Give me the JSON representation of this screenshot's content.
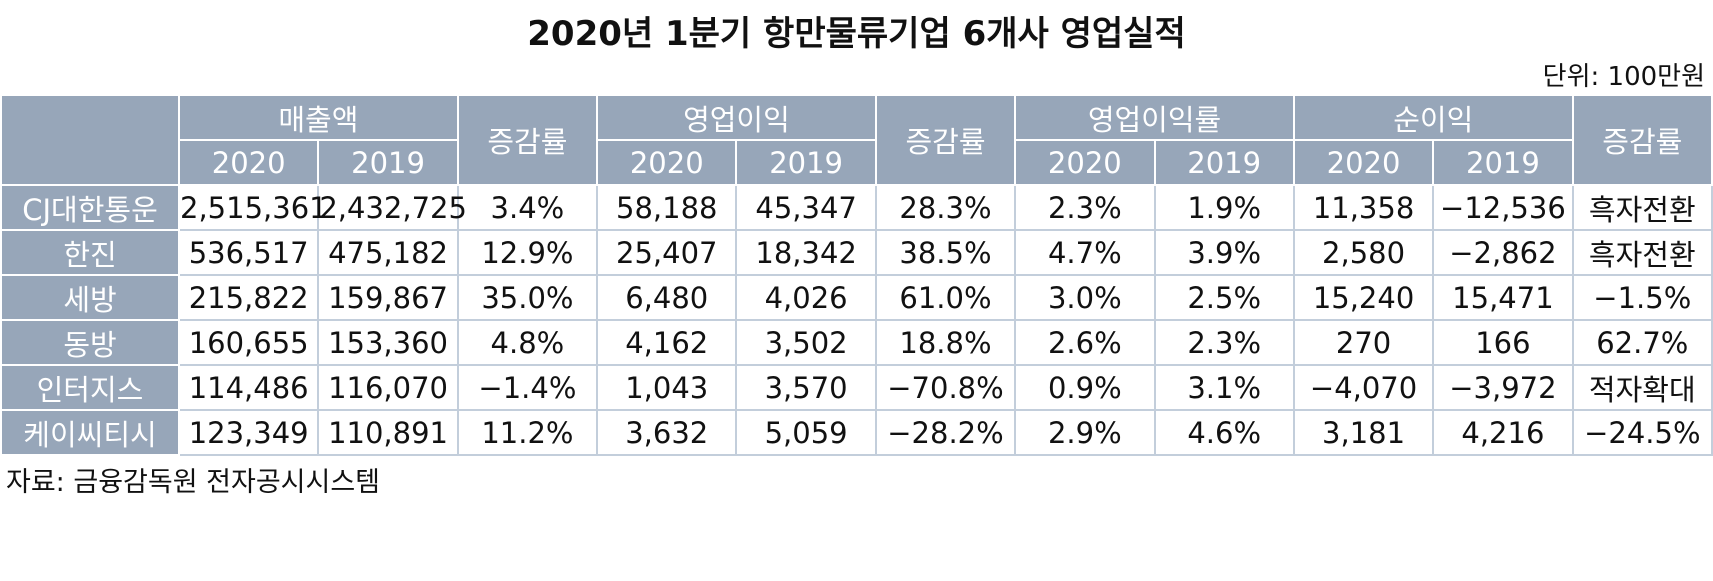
{
  "header": {
    "title": "2020년 1분기 항만물류기업 6개사 영업실적",
    "unit": "단위: 100만원"
  },
  "table": {
    "header_top": [
      "매출액",
      "증감률",
      "영업이익",
      "증감률",
      "영업이익률",
      "순이익",
      "증감률"
    ],
    "header_years": [
      "2020",
      "2019",
      "2020",
      "2019",
      "2020",
      "2019",
      "2020",
      "2019"
    ],
    "rows": [
      [
        "CJ대한통운",
        "2,515,361",
        "2,432,725",
        "3.4%",
        "58,188",
        "45,347",
        "28.3%",
        "2.3%",
        "1.9%",
        "11,358",
        "−12,536",
        "흑자전환"
      ],
      [
        "한진",
        "536,517",
        "475,182",
        "12.9%",
        "25,407",
        "18,342",
        "38.5%",
        "4.7%",
        "3.9%",
        "2,580",
        "−2,862",
        "흑자전환"
      ],
      [
        "세방",
        "215,822",
        "159,867",
        "35.0%",
        "6,480",
        "4,026",
        "61.0%",
        "3.0%",
        "2.5%",
        "15,240",
        "15,471",
        "−1.5%"
      ],
      [
        "동방",
        "160,655",
        "153,360",
        "4.8%",
        "4,162",
        "3,502",
        "18.8%",
        "2.6%",
        "2.3%",
        "270",
        "166",
        "62.7%"
      ],
      [
        "인터지스",
        "114,486",
        "116,070",
        "−1.4%",
        "1,043",
        "3,570",
        "−70.8%",
        "0.9%",
        "3.1%",
        "−4,070",
        "−3,972",
        "적자확대"
      ],
      [
        "케이씨티시",
        "123,349",
        "110,891",
        "11.2%",
        "3,632",
        "5,059",
        "−28.2%",
        "2.9%",
        "4.6%",
        "3,181",
        "4,216",
        "−24.5%"
      ]
    ]
  },
  "footer": {
    "source": "자료: 금융감독원 전자공시시스템"
  }
}
